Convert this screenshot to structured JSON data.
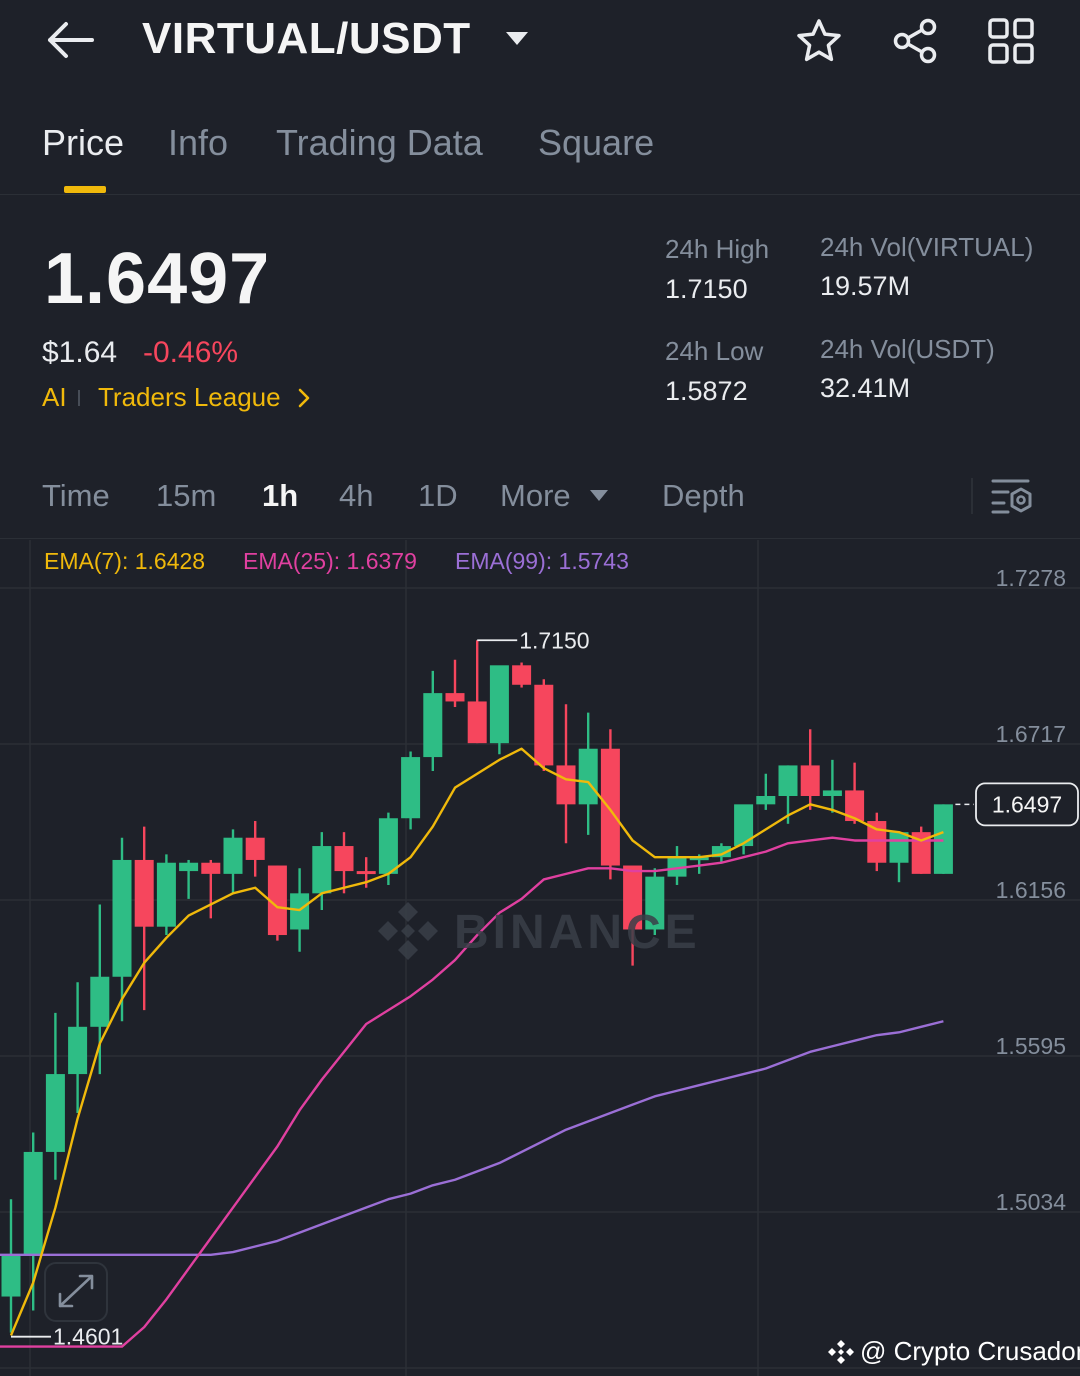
{
  "header": {
    "pair": "VIRTUAL/USDT",
    "icons": [
      "back-arrow-icon",
      "caret-down-icon",
      "star-icon",
      "share-icon",
      "grid-icon"
    ]
  },
  "tabs": [
    {
      "label": "Price",
      "active": true
    },
    {
      "label": "Info",
      "active": false
    },
    {
      "label": "Trading Data",
      "active": false
    },
    {
      "label": "Square",
      "active": false
    }
  ],
  "ticker": {
    "last_price": "1.6497",
    "usd_price": "$1.64",
    "change_pct": "-0.46%",
    "ai_label": "AI",
    "league_label": "Traders League",
    "high_label": "24h High",
    "high_value": "1.7150",
    "low_label": "24h Low",
    "low_value": "1.5872",
    "vol_base_label": "24h Vol(VIRTUAL)",
    "vol_base_value": "19.57M",
    "vol_quote_label": "24h Vol(USDT)",
    "vol_quote_value": "32.41M"
  },
  "intervals": [
    {
      "label": "Time",
      "active": false
    },
    {
      "label": "15m",
      "active": false
    },
    {
      "label": "1h",
      "active": true
    },
    {
      "label": "4h",
      "active": false
    },
    {
      "label": "1D",
      "active": false
    },
    {
      "label": "More",
      "active": false
    },
    {
      "label": "Depth",
      "active": false
    }
  ],
  "ema": {
    "ema7": "EMA(7): 1.6428",
    "ema25": "EMA(25): 1.6379",
    "ema99": "EMA(99): 1.5743"
  },
  "colors": {
    "up": "#2ebd85",
    "down": "#f6465d",
    "accent": "#f0b90b",
    "ema7": "#f0b90b",
    "ema25": "#e040a0",
    "ema99": "#9b6fd6"
  },
  "chart_data": {
    "type": "candlestick",
    "y_ticks": [
      "1.7278",
      "1.6717",
      "1.6156",
      "1.5595",
      "1.5034"
    ],
    "ylim": [
      1.4601,
      1.7278
    ],
    "high_label": "1.7150",
    "low_label": "1.4601",
    "last_price_label": "1.6497",
    "watermark": "BINANCE",
    "credit": "@ Crypto Crusador",
    "candles": [
      {
        "o": 1.473,
        "h": 1.508,
        "l": 1.46,
        "c": 1.488
      },
      {
        "o": 1.488,
        "h": 1.532,
        "l": 1.468,
        "c": 1.525
      },
      {
        "o": 1.525,
        "h": 1.575,
        "l": 1.515,
        "c": 1.553
      },
      {
        "o": 1.553,
        "h": 1.586,
        "l": 1.539,
        "c": 1.57
      },
      {
        "o": 1.57,
        "h": 1.614,
        "l": 1.553,
        "c": 1.588
      },
      {
        "o": 1.588,
        "h": 1.638,
        "l": 1.572,
        "c": 1.63
      },
      {
        "o": 1.63,
        "h": 1.642,
        "l": 1.576,
        "c": 1.606
      },
      {
        "o": 1.606,
        "h": 1.632,
        "l": 1.603,
        "c": 1.629
      },
      {
        "o": 1.626,
        "h": 1.63,
        "l": 1.616,
        "c": 1.629
      },
      {
        "o": 1.629,
        "h": 1.63,
        "l": 1.609,
        "c": 1.625
      },
      {
        "o": 1.625,
        "h": 1.641,
        "l": 1.618,
        "c": 1.638
      },
      {
        "o": 1.638,
        "h": 1.644,
        "l": 1.624,
        "c": 1.63
      },
      {
        "o": 1.628,
        "h": 1.628,
        "l": 1.601,
        "c": 1.603
      },
      {
        "o": 1.605,
        "h": 1.627,
        "l": 1.597,
        "c": 1.618
      },
      {
        "o": 1.618,
        "h": 1.64,
        "l": 1.612,
        "c": 1.635
      },
      {
        "o": 1.635,
        "h": 1.64,
        "l": 1.618,
        "c": 1.626
      },
      {
        "o": 1.626,
        "h": 1.631,
        "l": 1.62,
        "c": 1.625
      },
      {
        "o": 1.625,
        "h": 1.647,
        "l": 1.621,
        "c": 1.645
      },
      {
        "o": 1.645,
        "h": 1.669,
        "l": 1.641,
        "c": 1.667
      },
      {
        "o": 1.667,
        "h": 1.698,
        "l": 1.662,
        "c": 1.69
      },
      {
        "o": 1.69,
        "h": 1.702,
        "l": 1.685,
        "c": 1.687
      },
      {
        "o": 1.687,
        "h": 1.709,
        "l": 1.672,
        "c": 1.672
      },
      {
        "o": 1.672,
        "h": 1.698,
        "l": 1.668,
        "c": 1.7
      },
      {
        "o": 1.7,
        "h": 1.701,
        "l": 1.692,
        "c": 1.693
      },
      {
        "o": 1.693,
        "h": 1.695,
        "l": 1.662,
        "c": 1.664
      },
      {
        "o": 1.664,
        "h": 1.686,
        "l": 1.636,
        "c": 1.65
      },
      {
        "o": 1.65,
        "h": 1.683,
        "l": 1.639,
        "c": 1.67
      },
      {
        "o": 1.67,
        "h": 1.677,
        "l": 1.623,
        "c": 1.628
      },
      {
        "o": 1.628,
        "h": 1.627,
        "l": 1.592,
        "c": 1.605
      },
      {
        "o": 1.605,
        "h": 1.627,
        "l": 1.603,
        "c": 1.624
      },
      {
        "o": 1.624,
        "h": 1.635,
        "l": 1.621,
        "c": 1.631
      },
      {
        "o": 1.631,
        "h": 1.632,
        "l": 1.625,
        "c": 1.631
      },
      {
        "o": 1.631,
        "h": 1.636,
        "l": 1.629,
        "c": 1.635
      },
      {
        "o": 1.635,
        "h": 1.648,
        "l": 1.632,
        "c": 1.65
      },
      {
        "o": 1.65,
        "h": 1.661,
        "l": 1.648,
        "c": 1.653
      },
      {
        "o": 1.653,
        "h": 1.664,
        "l": 1.643,
        "c": 1.664
      },
      {
        "o": 1.664,
        "h": 1.677,
        "l": 1.648,
        "c": 1.653
      },
      {
        "o": 1.653,
        "h": 1.666,
        "l": 1.647,
        "c": 1.655
      },
      {
        "o": 1.655,
        "h": 1.665,
        "l": 1.643,
        "c": 1.644
      },
      {
        "o": 1.644,
        "h": 1.647,
        "l": 1.626,
        "c": 1.629
      },
      {
        "o": 1.629,
        "h": 1.64,
        "l": 1.622,
        "c": 1.64
      },
      {
        "o": 1.64,
        "h": 1.642,
        "l": 1.625,
        "c": 1.625
      },
      {
        "o": 1.625,
        "h": 1.65,
        "l": 1.625,
        "c": 1.65
      }
    ],
    "ema7_values": [
      1.459,
      1.478,
      1.505,
      1.537,
      1.564,
      1.58,
      1.593,
      1.602,
      1.61,
      1.614,
      1.618,
      1.62,
      1.613,
      1.612,
      1.618,
      1.62,
      1.622,
      1.625,
      1.631,
      1.642,
      1.656,
      1.661,
      1.666,
      1.67,
      1.663,
      1.659,
      1.658,
      1.648,
      1.637,
      1.631,
      1.631,
      1.631,
      1.632,
      1.636,
      1.641,
      1.646,
      1.65,
      1.648,
      1.645,
      1.641,
      1.64,
      1.637,
      1.64
    ],
    "ema25_values": [
      1.455,
      1.462,
      1.472,
      1.483,
      1.494,
      1.505,
      1.516,
      1.527,
      1.54,
      1.551,
      1.561,
      1.571,
      1.576,
      1.581,
      1.587,
      1.594,
      1.603,
      1.611,
      1.616,
      1.623,
      1.625,
      1.627,
      1.627,
      1.626,
      1.626,
      1.627,
      1.628,
      1.629,
      1.631,
      1.633,
      1.636,
      1.637,
      1.638,
      1.637,
      1.637,
      1.637,
      1.637,
      1.637
    ],
    "ema99_values": [
      1.488,
      1.489,
      1.491,
      1.493,
      1.496,
      1.499,
      1.502,
      1.505,
      1.508,
      1.51,
      1.513,
      1.515,
      1.518,
      1.521,
      1.525,
      1.529,
      1.533,
      1.536,
      1.539,
      1.542,
      1.545,
      1.547,
      1.549,
      1.551,
      1.553,
      1.555,
      1.558,
      1.561,
      1.563,
      1.565,
      1.567,
      1.568,
      1.57,
      1.572
    ]
  }
}
